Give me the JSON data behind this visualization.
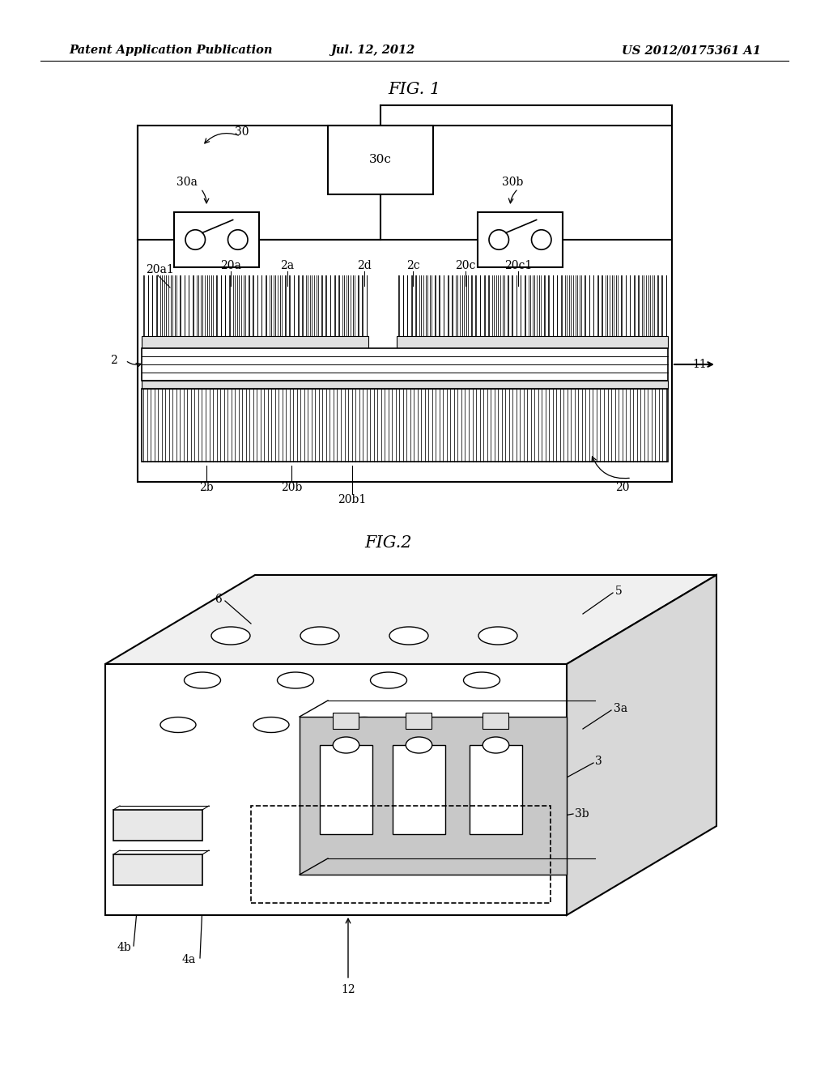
{
  "bg_color": "#ffffff",
  "header_left": "Patent Application Publication",
  "header_mid": "Jul. 12, 2012",
  "header_right": "US 2012/0175361 A1",
  "fig1_title": "FIG. 1",
  "fig2_title": "FIG.2"
}
